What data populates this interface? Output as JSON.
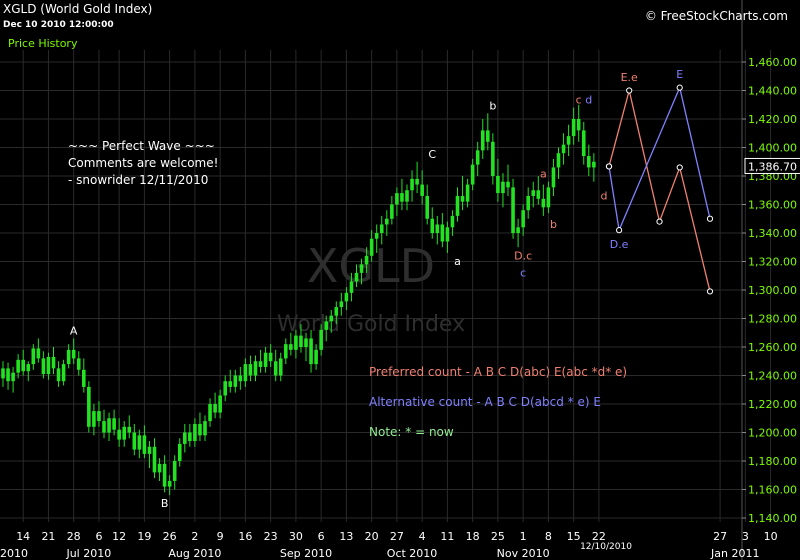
{
  "header": {
    "title": "XGLD (World Gold Index)",
    "datetime": "Dec 10 2010 12:00:00",
    "panel_label": "Price History",
    "copyright": "© FreeStockCharts.com"
  },
  "watermark": {
    "symbol": "XGLD",
    "name": "World Gold Index"
  },
  "colors": {
    "background": "#000000",
    "grid": "#2a2a2a",
    "candle": "#22e222",
    "price_label": "#7cfc00",
    "preferred": "#f08070",
    "alternative": "#8080ff",
    "note": "#90ee90",
    "comment": "#ffffff"
  },
  "chart_data": {
    "type": "candlestick",
    "title": "XGLD (World Gold Index)",
    "ylim": [
      1130,
      1475
    ],
    "y_ticks": [
      "1,140.00",
      "1,160.00",
      "1,180.00",
      "1,200.00",
      "1,220.00",
      "1,240.00",
      "1,260.00",
      "1,280.00",
      "1,300.00",
      "1,320.00",
      "1,340.00",
      "1,360.00",
      "1,380.00",
      "1,400.00",
      "1,420.00",
      "1,440.00",
      "1,460.00"
    ],
    "y_tick_values": [
      1140,
      1160,
      1180,
      1200,
      1220,
      1240,
      1260,
      1280,
      1300,
      1320,
      1340,
      1360,
      1380,
      1400,
      1420,
      1440,
      1460
    ],
    "x_day_ticks": [
      {
        "label": "14",
        "i": 4
      },
      {
        "label": "21",
        "i": 9
      },
      {
        "label": "28",
        "i": 14
      },
      {
        "label": "6",
        "i": 19
      },
      {
        "label": "12",
        "i": 23
      },
      {
        "label": "19",
        "i": 28
      },
      {
        "label": "26",
        "i": 33
      },
      {
        "label": "2",
        "i": 38
      },
      {
        "label": "9",
        "i": 43
      },
      {
        "label": "16",
        "i": 48
      },
      {
        "label": "23",
        "i": 53
      },
      {
        "label": "30",
        "i": 58
      },
      {
        "label": "6",
        "i": 63
      },
      {
        "label": "13",
        "i": 68
      },
      {
        "label": "20",
        "i": 73
      },
      {
        "label": "27",
        "i": 78
      },
      {
        "label": "4",
        "i": 83
      },
      {
        "label": "11",
        "i": 88
      },
      {
        "label": "18",
        "i": 93
      },
      {
        "label": "25",
        "i": 98
      },
      {
        "label": "1",
        "i": 103
      },
      {
        "label": "8",
        "i": 108
      },
      {
        "label": "15",
        "i": 113
      },
      {
        "label": "22",
        "i": 118
      },
      {
        "label": "27",
        "i": 142
      },
      {
        "label": "3",
        "i": 147
      },
      {
        "label": "10",
        "i": 152
      }
    ],
    "x_month_ticks": [
      {
        "label": "2010",
        "i": 0
      },
      {
        "label": "Jul 2010",
        "i": 17
      },
      {
        "label": "Aug 2010",
        "i": 38
      },
      {
        "label": "Sep 2010",
        "i": 60
      },
      {
        "label": "Oct 2010",
        "i": 81
      },
      {
        "label": "Nov 2010",
        "i": 103
      },
      {
        "label": "Jan 2011",
        "i": 145
      }
    ],
    "current_date_label": "12/10/2010",
    "current_price_label": "1,386.70",
    "current_price": 1386.7,
    "candles": [
      [
        1238,
        1250,
        1232,
        1245
      ],
      [
        1245,
        1249,
        1230,
        1236
      ],
      [
        1236,
        1246,
        1228,
        1242
      ],
      [
        1242,
        1255,
        1238,
        1251
      ],
      [
        1251,
        1258,
        1240,
        1243
      ],
      [
        1243,
        1250,
        1236,
        1248
      ],
      [
        1248,
        1262,
        1244,
        1259
      ],
      [
        1259,
        1266,
        1249,
        1252
      ],
      [
        1252,
        1257,
        1238,
        1241
      ],
      [
        1241,
        1256,
        1237,
        1253
      ],
      [
        1253,
        1260,
        1241,
        1245
      ],
      [
        1245,
        1250,
        1232,
        1236
      ],
      [
        1236,
        1251,
        1233,
        1248
      ],
      [
        1248,
        1262,
        1245,
        1258
      ],
      [
        1258,
        1266,
        1248,
        1252
      ],
      [
        1252,
        1257,
        1240,
        1244
      ],
      [
        1244,
        1252,
        1228,
        1232
      ],
      [
        1232,
        1236,
        1200,
        1204
      ],
      [
        1204,
        1220,
        1198,
        1215
      ],
      [
        1215,
        1222,
        1204,
        1208
      ],
      [
        1208,
        1216,
        1196,
        1200
      ],
      [
        1200,
        1214,
        1194,
        1210
      ],
      [
        1210,
        1216,
        1198,
        1202
      ],
      [
        1202,
        1210,
        1190,
        1195
      ],
      [
        1195,
        1208,
        1190,
        1204
      ],
      [
        1204,
        1212,
        1196,
        1200
      ],
      [
        1200,
        1206,
        1184,
        1188
      ],
      [
        1188,
        1202,
        1182,
        1198
      ],
      [
        1198,
        1205,
        1182,
        1185
      ],
      [
        1185,
        1194,
        1175,
        1190
      ],
      [
        1190,
        1196,
        1168,
        1172
      ],
      [
        1172,
        1182,
        1166,
        1178
      ],
      [
        1178,
        1184,
        1158,
        1162
      ],
      [
        1162,
        1170,
        1156,
        1166
      ],
      [
        1166,
        1184,
        1160,
        1180
      ],
      [
        1180,
        1196,
        1176,
        1192
      ],
      [
        1192,
        1206,
        1186,
        1200
      ],
      [
        1200,
        1206,
        1190,
        1194
      ],
      [
        1194,
        1210,
        1190,
        1206
      ],
      [
        1206,
        1214,
        1194,
        1198
      ],
      [
        1198,
        1212,
        1194,
        1208
      ],
      [
        1208,
        1224,
        1204,
        1220
      ],
      [
        1220,
        1228,
        1210,
        1214
      ],
      [
        1214,
        1230,
        1210,
        1226
      ],
      [
        1226,
        1240,
        1222,
        1236
      ],
      [
        1236,
        1244,
        1228,
        1232
      ],
      [
        1232,
        1244,
        1228,
        1240
      ],
      [
        1240,
        1246,
        1230,
        1236
      ],
      [
        1236,
        1252,
        1232,
        1248
      ],
      [
        1248,
        1254,
        1236,
        1240
      ],
      [
        1240,
        1254,
        1236,
        1250
      ],
      [
        1250,
        1258,
        1242,
        1246
      ],
      [
        1246,
        1260,
        1242,
        1256
      ],
      [
        1256,
        1262,
        1246,
        1250
      ],
      [
        1250,
        1258,
        1236,
        1240
      ],
      [
        1240,
        1256,
        1236,
        1252
      ],
      [
        1252,
        1266,
        1248,
        1262
      ],
      [
        1262,
        1270,
        1254,
        1258
      ],
      [
        1258,
        1272,
        1252,
        1268
      ],
      [
        1268,
        1276,
        1256,
        1260
      ],
      [
        1260,
        1270,
        1250,
        1266
      ],
      [
        1266,
        1272,
        1242,
        1248
      ],
      [
        1248,
        1262,
        1244,
        1258
      ],
      [
        1258,
        1276,
        1254,
        1272
      ],
      [
        1272,
        1282,
        1264,
        1278
      ],
      [
        1278,
        1286,
        1270,
        1282
      ],
      [
        1282,
        1292,
        1276,
        1288
      ],
      [
        1288,
        1298,
        1282,
        1292
      ],
      [
        1292,
        1302,
        1286,
        1298
      ],
      [
        1298,
        1312,
        1292,
        1306
      ],
      [
        1306,
        1318,
        1302,
        1312
      ],
      [
        1312,
        1322,
        1304,
        1318
      ],
      [
        1318,
        1330,
        1312,
        1324
      ],
      [
        1324,
        1342,
        1320,
        1336
      ],
      [
        1336,
        1346,
        1326,
        1340
      ],
      [
        1340,
        1352,
        1332,
        1346
      ],
      [
        1346,
        1356,
        1338,
        1350
      ],
      [
        1350,
        1366,
        1346,
        1360
      ],
      [
        1360,
        1372,
        1352,
        1368
      ],
      [
        1368,
        1378,
        1356,
        1362
      ],
      [
        1362,
        1374,
        1356,
        1370
      ],
      [
        1370,
        1384,
        1362,
        1378
      ],
      [
        1378,
        1390,
        1368,
        1374
      ],
      [
        1374,
        1384,
        1360,
        1366
      ],
      [
        1366,
        1374,
        1346,
        1350
      ],
      [
        1350,
        1358,
        1336,
        1340
      ],
      [
        1340,
        1352,
        1332,
        1346
      ],
      [
        1346,
        1354,
        1330,
        1334
      ],
      [
        1334,
        1348,
        1326,
        1344
      ],
      [
        1344,
        1356,
        1338,
        1352
      ],
      [
        1352,
        1372,
        1348,
        1366
      ],
      [
        1366,
        1380,
        1356,
        1362
      ],
      [
        1362,
        1378,
        1358,
        1374
      ],
      [
        1374,
        1392,
        1370,
        1388
      ],
      [
        1388,
        1404,
        1380,
        1398
      ],
      [
        1398,
        1420,
        1392,
        1412
      ],
      [
        1412,
        1424,
        1398,
        1404
      ],
      [
        1404,
        1410,
        1374,
        1380
      ],
      [
        1380,
        1392,
        1362,
        1368
      ],
      [
        1368,
        1382,
        1358,
        1376
      ],
      [
        1376,
        1388,
        1366,
        1372
      ],
      [
        1372,
        1378,
        1336,
        1340
      ],
      [
        1340,
        1350,
        1330,
        1344
      ],
      [
        1344,
        1360,
        1338,
        1356
      ],
      [
        1356,
        1372,
        1350,
        1366
      ],
      [
        1366,
        1376,
        1358,
        1370
      ],
      [
        1370,
        1380,
        1360,
        1364
      ],
      [
        1364,
        1374,
        1352,
        1358
      ],
      [
        1358,
        1376,
        1354,
        1372
      ],
      [
        1372,
        1392,
        1366,
        1386
      ],
      [
        1386,
        1400,
        1378,
        1396
      ],
      [
        1396,
        1410,
        1388,
        1402
      ],
      [
        1402,
        1416,
        1394,
        1408
      ],
      [
        1408,
        1428,
        1402,
        1420
      ],
      [
        1420,
        1430,
        1404,
        1412
      ],
      [
        1412,
        1418,
        1388,
        1394
      ],
      [
        1394,
        1402,
        1380,
        1386
      ],
      [
        1386,
        1396,
        1376,
        1390
      ]
    ],
    "projection_preferred": {
      "name": "Preferred count",
      "points": [
        [
          120,
          1386.7
        ],
        [
          124,
          1440
        ],
        [
          130,
          1348
        ],
        [
          134,
          1386
        ],
        [
          140,
          1299
        ]
      ]
    },
    "projection_alternative": {
      "name": "Alternative count",
      "points": [
        [
          120,
          1386.7
        ],
        [
          122,
          1342
        ],
        [
          134,
          1442
        ],
        [
          140,
          1350
        ]
      ]
    },
    "wave_labels": [
      {
        "text": "A",
        "i": 14,
        "y": 1266,
        "color": "white",
        "pos": "above"
      },
      {
        "text": "B",
        "i": 32,
        "y": 1156,
        "color": "white",
        "pos": "below"
      },
      {
        "text": "C",
        "i": 85,
        "y": 1390,
        "color": "white",
        "pos": "above"
      },
      {
        "text": "a",
        "i": 90,
        "y": 1326,
        "color": "white",
        "pos": "below"
      },
      {
        "text": "b",
        "i": 97,
        "y": 1424,
        "color": "white",
        "pos": "above"
      },
      {
        "text": "D.c",
        "i": 103,
        "y": 1330,
        "color": "salmon",
        "pos": "below"
      },
      {
        "text": "c",
        "i": 103,
        "y": 1318,
        "color": "blue",
        "pos": "below"
      },
      {
        "text": "a",
        "i": 107,
        "y": 1376,
        "color": "salmon",
        "pos": "above"
      },
      {
        "text": "b",
        "i": 109,
        "y": 1352,
        "color": "salmon",
        "pos": "below"
      },
      {
        "text": "c",
        "i": 114,
        "y": 1428,
        "color": "salmon",
        "pos": "above"
      },
      {
        "text": "d",
        "i": 116,
        "y": 1428,
        "color": "blue",
        "pos": "above"
      },
      {
        "text": "d",
        "i": 119,
        "y": 1372,
        "color": "salmon",
        "pos": "below"
      },
      {
        "text": "E.e",
        "i": 124,
        "y": 1444,
        "color": "salmon",
        "pos": "above"
      },
      {
        "text": "E",
        "i": 134,
        "y": 1446,
        "color": "blue",
        "pos": "above"
      },
      {
        "text": "D.e",
        "i": 122,
        "y": 1338,
        "color": "blue",
        "pos": "below"
      }
    ]
  },
  "annotations": {
    "comment_lines": [
      "~~~ Perfect Wave ~~~",
      "Comments are welcome!",
      "- snowrider  12/11/2010"
    ],
    "preferred_count": "Preferred count -  A B C D(abc) E(abc *d* e)",
    "alternative_count": "Alternative count -  A B C D(abcd * e) E",
    "note": "Note:  * = now"
  }
}
